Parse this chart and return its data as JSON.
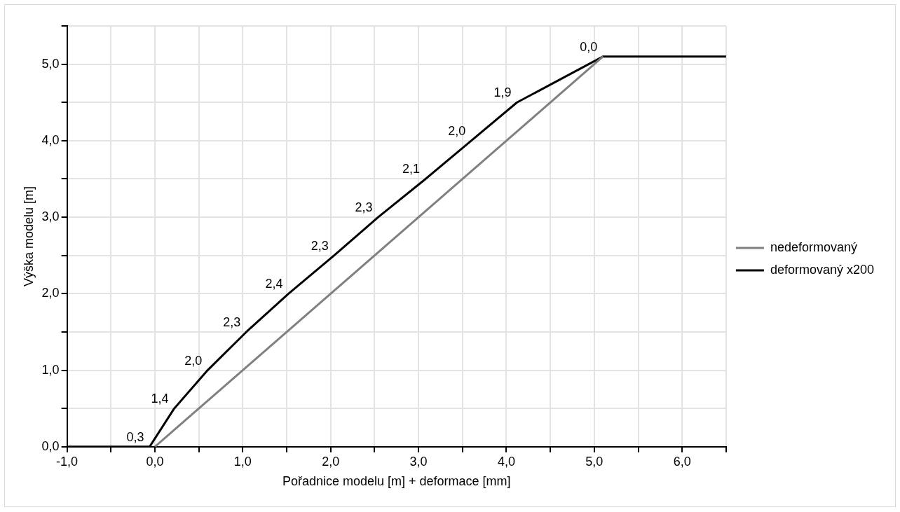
{
  "chart_data": {
    "type": "line",
    "xlabel": "Pořadnice modelu [m] + deformace [mm]",
    "ylabel": "Výška modelu [m]",
    "xlim": [
      -1,
      6.5
    ],
    "xticks": [
      {
        "value": -1,
        "label": "-1,0"
      },
      {
        "value": -0.5,
        "label": null
      },
      {
        "value": 0,
        "label": "0,0"
      },
      {
        "value": 0.5,
        "label": null
      },
      {
        "value": 1,
        "label": "1,0"
      },
      {
        "value": 1.5,
        "label": null
      },
      {
        "value": 2,
        "label": "2,0"
      },
      {
        "value": 2.5,
        "label": null
      },
      {
        "value": 3,
        "label": "3,0"
      },
      {
        "value": 3.5,
        "label": null
      },
      {
        "value": 4,
        "label": "4,0"
      },
      {
        "value": 4.5,
        "label": null
      },
      {
        "value": 5,
        "label": "5,0"
      },
      {
        "value": 5.5,
        "label": null
      },
      {
        "value": 6,
        "label": "6,0"
      },
      {
        "value": 6.5,
        "label": null
      }
    ],
    "ylim": [
      0,
      5.5
    ],
    "yticks": [
      {
        "value": 0,
        "label": "0,0"
      },
      {
        "value": 0.5,
        "label": null
      },
      {
        "value": 1,
        "label": "1,0"
      },
      {
        "value": 1.5,
        "label": null
      },
      {
        "value": 2,
        "label": "2,0"
      },
      {
        "value": 2.5,
        "label": null
      },
      {
        "value": 3,
        "label": "3,0"
      },
      {
        "value": 3.5,
        "label": null
      },
      {
        "value": 4,
        "label": "4,0"
      },
      {
        "value": 4.5,
        "label": null
      },
      {
        "value": 5,
        "label": "5,0"
      },
      {
        "value": 5.5,
        "label": null
      }
    ],
    "grid": true,
    "legend": "right",
    "marker": "none",
    "line_style": "solid",
    "series": [
      {
        "name": "nedeformovaný",
        "color": "#808080",
        "x": [
          0,
          5.1
        ],
        "values": [
          0,
          5.1
        ]
      },
      {
        "name": "deformovaný x200",
        "color": "#000000",
        "x": [
          -1,
          -0.06,
          0.22,
          0.6,
          1.04,
          1.52,
          2.04,
          2.54,
          3.08,
          3.6,
          4.12,
          5.1,
          6.5
        ],
        "values": [
          0,
          0,
          0.5,
          1.0,
          1.5,
          2.0,
          2.5,
          3.0,
          3.5,
          4.0,
          4.5,
          5.1,
          5.1
        ],
        "line_style": "solid"
      }
    ],
    "annotations": [
      {
        "text": "0,3",
        "x": -0.06,
        "y": 0
      },
      {
        "text": "1,4",
        "x": 0.22,
        "y": 0.5
      },
      {
        "text": "2,0",
        "x": 0.6,
        "y": 1.0
      },
      {
        "text": "2,3",
        "x": 1.04,
        "y": 1.5
      },
      {
        "text": "2,4",
        "x": 1.52,
        "y": 2.0
      },
      {
        "text": "2,3",
        "x": 2.04,
        "y": 2.5
      },
      {
        "text": "2,3",
        "x": 2.54,
        "y": 3.0
      },
      {
        "text": "2,1",
        "x": 3.08,
        "y": 3.5
      },
      {
        "text": "2,0",
        "x": 3.6,
        "y": 4.0
      },
      {
        "text": "1,9",
        "x": 4.12,
        "y": 4.5
      },
      {
        "text": "0,0",
        "x": 5.1,
        "y": 5.1
      }
    ]
  }
}
